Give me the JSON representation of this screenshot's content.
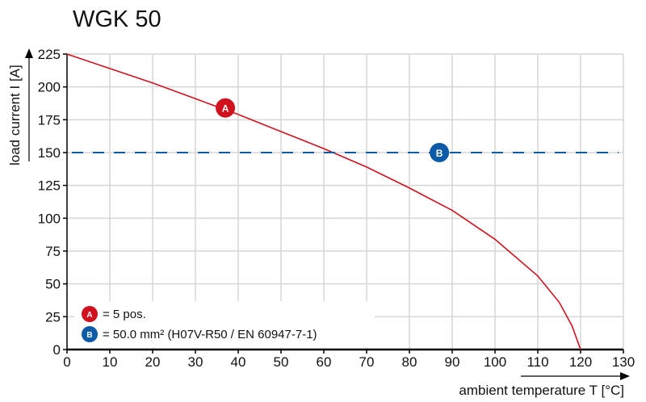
{
  "chart_data": {
    "type": "line",
    "title": "WGK 50",
    "xlabel": "ambient temperature T [°C]",
    "ylabel": "load current I [A]",
    "xlim": [
      0,
      130
    ],
    "ylim": [
      0,
      225
    ],
    "xticks": [
      0,
      10,
      20,
      30,
      40,
      50,
      60,
      70,
      80,
      90,
      100,
      110,
      120,
      130
    ],
    "yticks": [
      0,
      25,
      50,
      75,
      100,
      125,
      150,
      175,
      200,
      225
    ],
    "grid": true,
    "series": [
      {
        "marker": "A",
        "color": "#d0121f",
        "style": "solid",
        "x": [
          0,
          10,
          20,
          30,
          40,
          50,
          60,
          70,
          80,
          90,
          100,
          110,
          115,
          118,
          120
        ],
        "y": [
          225,
          214,
          203,
          191,
          179,
          166,
          153,
          139,
          123,
          106,
          84,
          56,
          36,
          18,
          0
        ]
      },
      {
        "marker": "B",
        "color": "#0d5aa7",
        "style": "dashed",
        "x": [
          0,
          130
        ],
        "y": [
          150,
          150
        ]
      }
    ],
    "marker_positions": [
      {
        "label": "A",
        "x": 37,
        "y": 184
      },
      {
        "label": "B",
        "x": 87,
        "y": 150
      }
    ],
    "legend": {
      "placement": "bottom-left",
      "entries": [
        {
          "marker": "A",
          "text": "= 5 pos.",
          "color": "#d0121f"
        },
        {
          "marker": "B",
          "text": "= 50.0 mm² (H07V-R50 / EN 60947-7-1)",
          "color": "#0d5aa7"
        }
      ]
    }
  }
}
